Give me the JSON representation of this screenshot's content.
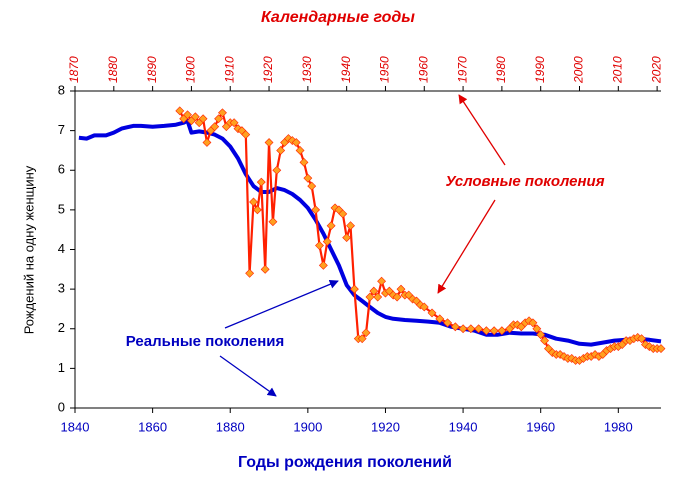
{
  "chart_data": {
    "type": "line",
    "x2label": "Календарные годы",
    "xlabel": "Годы рождения поколений",
    "ylabel": "Рождений на одну женщину",
    "xlim": [
      1840,
      1991
    ],
    "xticks": [
      1840,
      1860,
      1880,
      1900,
      1920,
      1940,
      1960,
      1980
    ],
    "x2lim": [
      1870,
      2021
    ],
    "x2ticks": [
      1870,
      1880,
      1890,
      1900,
      1910,
      1920,
      1930,
      1940,
      1950,
      1960,
      1970,
      1980,
      1990,
      2000,
      2010,
      2020
    ],
    "ylim": [
      0,
      8
    ],
    "yticks": [
      0,
      1,
      2,
      3,
      4,
      5,
      6,
      7,
      8
    ],
    "grid": false,
    "series": [
      {
        "name": "Реальные поколения",
        "color": "#0000e0",
        "x": [
          1841,
          1843,
          1845,
          1848,
          1850,
          1852,
          1855,
          1857,
          1860,
          1863,
          1866,
          1868,
          1869,
          1870,
          1872,
          1874,
          1876,
          1878,
          1880,
          1882,
          1884,
          1886,
          1888,
          1890,
          1892,
          1894,
          1896,
          1898,
          1900,
          1902,
          1904,
          1906,
          1908,
          1910,
          1912,
          1914,
          1916,
          1918,
          1920,
          1922,
          1925,
          1928,
          1931,
          1934,
          1937,
          1940,
          1943,
          1946,
          1949,
          1952,
          1955,
          1958,
          1961,
          1964,
          1967,
          1970,
          1973,
          1976,
          1979,
          1982,
          1985,
          1988,
          1991
        ],
        "values": [
          6.82,
          6.8,
          6.88,
          6.88,
          6.95,
          7.05,
          7.12,
          7.12,
          7.1,
          7.12,
          7.15,
          7.2,
          7.25,
          6.95,
          6.98,
          6.95,
          6.9,
          6.8,
          6.6,
          6.3,
          5.9,
          5.6,
          5.45,
          5.45,
          5.55,
          5.5,
          5.4,
          5.25,
          5.05,
          4.75,
          4.4,
          4.0,
          3.6,
          3.1,
          2.85,
          2.7,
          2.55,
          2.4,
          2.3,
          2.25,
          2.22,
          2.2,
          2.18,
          2.15,
          2.05,
          2.0,
          1.95,
          1.85,
          1.85,
          1.9,
          1.88,
          1.88,
          1.85,
          1.75,
          1.7,
          1.62,
          1.6,
          1.65,
          1.7,
          1.72,
          1.75,
          1.72,
          1.68
        ]
      },
      {
        "name": "Условные поколения",
        "color": "#ff2000",
        "marker_color": "#ffa020",
        "axis": "x2",
        "x": [
          1897,
          1898,
          1899,
          1900,
          1901,
          1902,
          1903,
          1904,
          1905,
          1906,
          1907,
          1908,
          1909,
          1910,
          1911,
          1912,
          1913,
          1914,
          1915,
          1916,
          1917,
          1918,
          1919,
          1920,
          1921,
          1922,
          1923,
          1924,
          1925,
          1926,
          1927,
          1928,
          1929,
          1930,
          1931,
          1932,
          1933,
          1934,
          1935,
          1936,
          1937,
          1938,
          1939,
          1940,
          1941,
          1942,
          1943,
          1944,
          1945,
          1946,
          1947,
          1948,
          1949,
          1950,
          1951,
          1952,
          1953,
          1954,
          1955,
          1956,
          1957,
          1958,
          1959,
          1960,
          1962,
          1964,
          1966,
          1968,
          1970,
          1972,
          1974,
          1976,
          1978,
          1980,
          1982,
          1983,
          1984,
          1985,
          1986,
          1987,
          1988,
          1989,
          1990,
          1991,
          1992,
          1993,
          1994,
          1995,
          1996,
          1997,
          1998,
          1999,
          2000,
          2001,
          2002,
          2003,
          2004,
          2005,
          2006,
          2007,
          2008,
          2009,
          2010,
          2011,
          2012,
          2013,
          2014,
          2015,
          2016,
          2017,
          2018,
          2019,
          2020,
          2021
        ],
        "values": [
          7.5,
          7.3,
          7.4,
          7.25,
          7.35,
          7.2,
          7.3,
          6.7,
          7.0,
          7.1,
          7.3,
          7.45,
          7.1,
          7.2,
          7.2,
          7.05,
          7.0,
          6.9,
          3.4,
          5.2,
          5.0,
          5.7,
          3.5,
          6.7,
          4.7,
          6.0,
          6.5,
          6.7,
          6.8,
          6.75,
          6.7,
          6.5,
          6.2,
          5.8,
          5.6,
          5.0,
          4.1,
          3.6,
          4.2,
          4.6,
          5.05,
          5.0,
          4.9,
          4.3,
          4.6,
          3.0,
          1.75,
          1.75,
          1.9,
          2.8,
          2.95,
          2.8,
          3.2,
          2.9,
          2.95,
          2.85,
          2.8,
          3.0,
          2.85,
          2.85,
          2.75,
          2.7,
          2.6,
          2.55,
          2.4,
          2.25,
          2.15,
          2.05,
          2.0,
          2.0,
          2.0,
          1.95,
          1.95,
          1.95,
          2.0,
          2.1,
          2.1,
          2.05,
          2.15,
          2.2,
          2.15,
          2.0,
          1.85,
          1.7,
          1.5,
          1.4,
          1.35,
          1.35,
          1.3,
          1.25,
          1.25,
          1.2,
          1.2,
          1.25,
          1.3,
          1.3,
          1.35,
          1.3,
          1.35,
          1.45,
          1.5,
          1.55,
          1.55,
          1.6,
          1.7,
          1.7,
          1.75,
          1.78,
          1.75,
          1.6,
          1.55,
          1.5,
          1.5,
          1.5
        ]
      }
    ]
  }
}
